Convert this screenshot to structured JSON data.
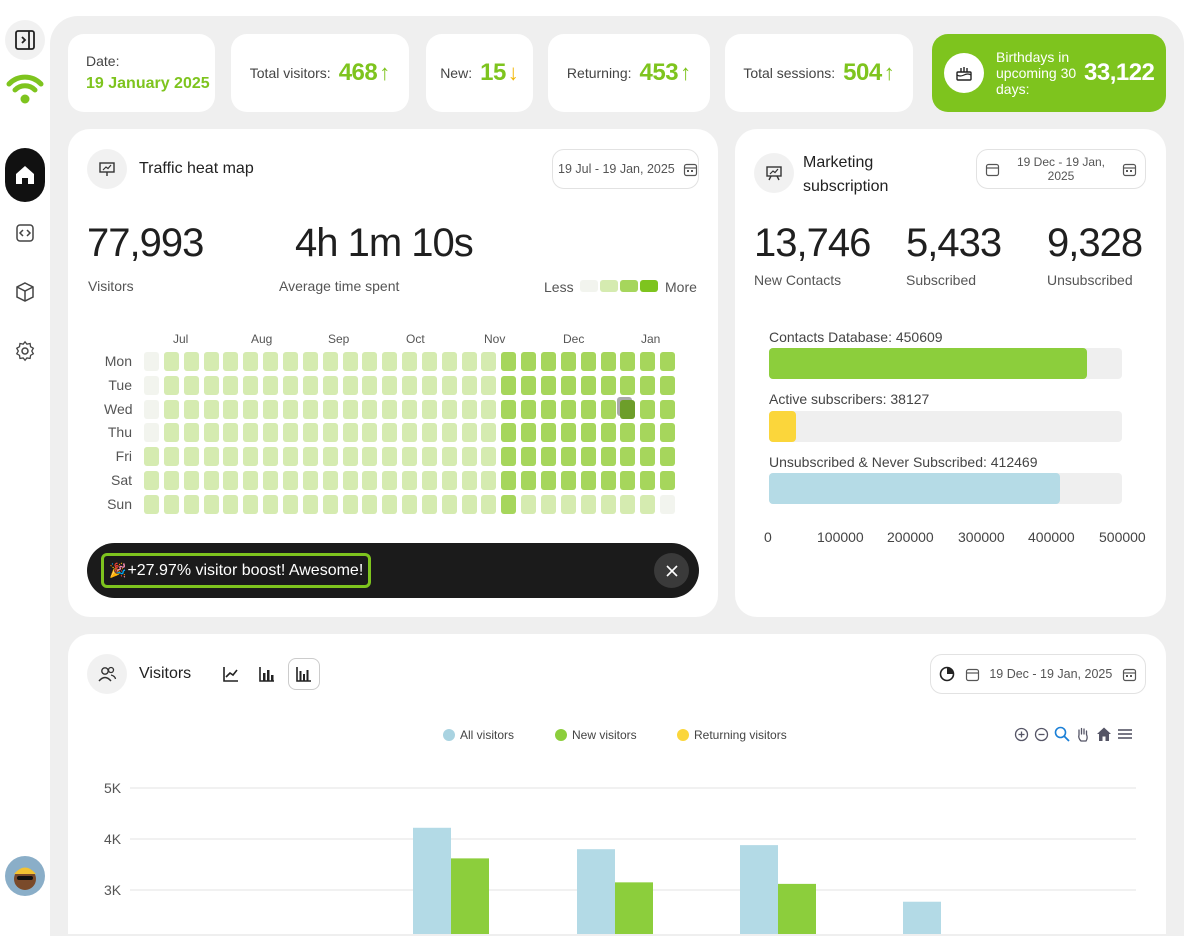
{
  "stats": {
    "date_label": "Date:",
    "date_value": "19 January 2025",
    "total_visitors_label": "Total visitors:",
    "total_visitors_value": "468",
    "new_label": "New:",
    "new_value": "15",
    "returning_label": "Returning:",
    "returning_value": "453",
    "sessions_label": "Total sessions:",
    "sessions_value": "504",
    "birthdays_label": "Birthdays in upcoming 30 days:",
    "birthdays_value": "33,122",
    "up_arrow": "↑",
    "down_arrow": "↓"
  },
  "heatmap": {
    "title": "Traffic heat map",
    "date_range": "19 Jul - 19 Jan, 2025",
    "visitors_value": "77,993",
    "visitors_label": "Visitors",
    "avg_time_value": "4h 1m 10s",
    "avg_time_label": "Average time spent",
    "legend_less": "Less",
    "legend_more": "More",
    "months": [
      "Jul",
      "Aug",
      "Sep",
      "Oct",
      "Nov",
      "Dec",
      "Jan"
    ],
    "days": [
      "Mon",
      "Tue",
      "Wed",
      "Thu",
      "Fri",
      "Sat",
      "Sun"
    ],
    "levels": [
      [
        0,
        1,
        1,
        1,
        1,
        1,
        1,
        1,
        1,
        1,
        1,
        1,
        1,
        1,
        1,
        1,
        1,
        1,
        2,
        2,
        2,
        2,
        2,
        2,
        2,
        2,
        2
      ],
      [
        0,
        1,
        1,
        1,
        1,
        1,
        1,
        1,
        1,
        1,
        1,
        1,
        1,
        1,
        1,
        1,
        1,
        1,
        2,
        2,
        2,
        2,
        2,
        2,
        2,
        2,
        2
      ],
      [
        0,
        1,
        1,
        1,
        1,
        1,
        1,
        1,
        1,
        1,
        1,
        1,
        1,
        1,
        1,
        1,
        1,
        1,
        2,
        2,
        2,
        2,
        2,
        2,
        3,
        2,
        2
      ],
      [
        0,
        1,
        1,
        1,
        1,
        1,
        1,
        1,
        1,
        1,
        1,
        1,
        1,
        1,
        1,
        1,
        1,
        1,
        2,
        2,
        2,
        2,
        2,
        2,
        2,
        2,
        2
      ],
      [
        1,
        1,
        1,
        1,
        1,
        1,
        1,
        1,
        1,
        1,
        1,
        1,
        1,
        1,
        1,
        1,
        1,
        1,
        2,
        2,
        2,
        2,
        2,
        2,
        2,
        2,
        2
      ],
      [
        1,
        1,
        1,
        1,
        1,
        1,
        1,
        1,
        1,
        1,
        1,
        1,
        1,
        1,
        1,
        1,
        1,
        1,
        2,
        2,
        2,
        2,
        2,
        2,
        2,
        2,
        2
      ],
      [
        1,
        1,
        1,
        1,
        1,
        1,
        1,
        1,
        1,
        1,
        1,
        1,
        1,
        1,
        1,
        1,
        1,
        1,
        2,
        1,
        1,
        1,
        1,
        1,
        1,
        1,
        0
      ]
    ],
    "level_colors": [
      "#f2f4ee",
      "#d5ebb0",
      "#a6d65c",
      "#6d9e2a"
    ],
    "toast_emoji": "🎉",
    "toast_text": "+27.97% visitor boost! Awesome!"
  },
  "marketing": {
    "title": "Marketing subscription",
    "date_range": "19 Dec - 19 Jan, 2025",
    "new_contacts_value": "13,746",
    "new_contacts_label": "New Contacts",
    "subscribed_value": "5,433",
    "subscribed_label": "Subscribed",
    "unsubscribed_value": "9,328",
    "unsubscribed_label": "Unsubscribed",
    "bars": [
      {
        "label": "Contacts Database: 450609",
        "value": 450609,
        "color": "#8cce3c"
      },
      {
        "label": "Active subscribers: 38127",
        "value": 38127,
        "color": "#fbd63b"
      },
      {
        "label": "Unsubscribed & Never Subscribed: 412469",
        "value": 412469,
        "color": "#b5dbe6"
      }
    ],
    "xmax": 500000,
    "ticks": [
      "0",
      "100000",
      "200000",
      "300000",
      "400000",
      "500000"
    ]
  },
  "visitors": {
    "title": "Visitors",
    "date_range": "19 Dec - 19 Jan, 2025",
    "legend": [
      {
        "name": "All visitors",
        "color": "#a9d3e1"
      },
      {
        "name": "New visitors",
        "color": "#8cce3c"
      },
      {
        "name": "Returning visitors",
        "color": "#fbd63b"
      }
    ]
  },
  "chart_data": {
    "type": "bar",
    "ylabels": [
      "5K",
      "4K",
      "3K"
    ],
    "ylim": [
      2700,
      5000
    ],
    "series": [
      {
        "name": "All visitors",
        "values": [
          4220,
          3800,
          3880,
          2770
        ]
      },
      {
        "name": "New visitors",
        "values": [
          3620,
          3150,
          3120,
          null
        ]
      }
    ]
  },
  "colors": {
    "accent": "#7ec41e",
    "accent_bg": "#7ec41e",
    "dark": "#1b1b1b"
  }
}
